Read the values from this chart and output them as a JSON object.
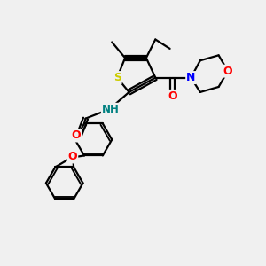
{
  "background_color": "#f0f0f0",
  "bond_color": "#000000",
  "sulfur_color": "#cccc00",
  "nitrogen_color": "#0000ff",
  "oxygen_color": "#ff0000",
  "teal_color": "#008080",
  "figsize": [
    3.0,
    3.0
  ],
  "dpi": 100,
  "xlim": [
    0,
    10
  ],
  "ylim": [
    0,
    10
  ]
}
